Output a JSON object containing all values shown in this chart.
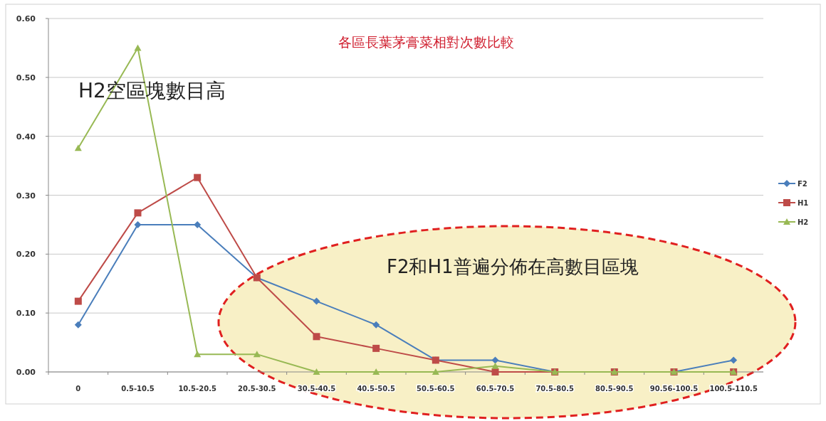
{
  "chart_data": {
    "type": "line",
    "title": "各區長葉茅膏菜相對次數比較",
    "categories": [
      "0",
      "0.5-10.5",
      "10.5-20.5",
      "20.5-30.5",
      "30.5-40.5",
      "40.5-50.5",
      "50.5-60.5",
      "60.5-70.5",
      "70.5-80.5",
      "80.5-90.5",
      "90.56-100.5",
      "100.5-110.5"
    ],
    "series": [
      {
        "name": "F2",
        "color": "#4a7ebb",
        "marker": "diamond",
        "values": [
          0.08,
          0.25,
          0.25,
          0.16,
          0.12,
          0.08,
          0.02,
          0.02,
          0,
          0,
          0,
          0.02
        ]
      },
      {
        "name": "H1",
        "color": "#be4b48",
        "marker": "square",
        "values": [
          0.12,
          0.27,
          0.33,
          0.16,
          0.06,
          0.04,
          0.02,
          0,
          0,
          0,
          0,
          0
        ]
      },
      {
        "name": "H2",
        "color": "#98b954",
        "marker": "triangle",
        "values": [
          0.38,
          0.55,
          0.03,
          0.03,
          0,
          0,
          0,
          0.01,
          0,
          0,
          0,
          0
        ]
      }
    ],
    "ylim": [
      0,
      0.6
    ],
    "yticks": [
      {
        "value": 0,
        "label": "0.00"
      },
      {
        "value": 0.1,
        "label": "0.10"
      },
      {
        "value": 0.2,
        "label": "0.20"
      },
      {
        "value": 0.3,
        "label": "0.30"
      },
      {
        "value": 0.4,
        "label": "0.40"
      },
      {
        "value": 0.5,
        "label": "0.50"
      },
      {
        "value": 0.6,
        "label": "0.60"
      }
    ],
    "grid": "y",
    "legend": "right",
    "line_style": "solid",
    "annotations": [
      "H2空區塊數目高",
      "F2和H1普遍分佈在高數目區塊"
    ]
  }
}
